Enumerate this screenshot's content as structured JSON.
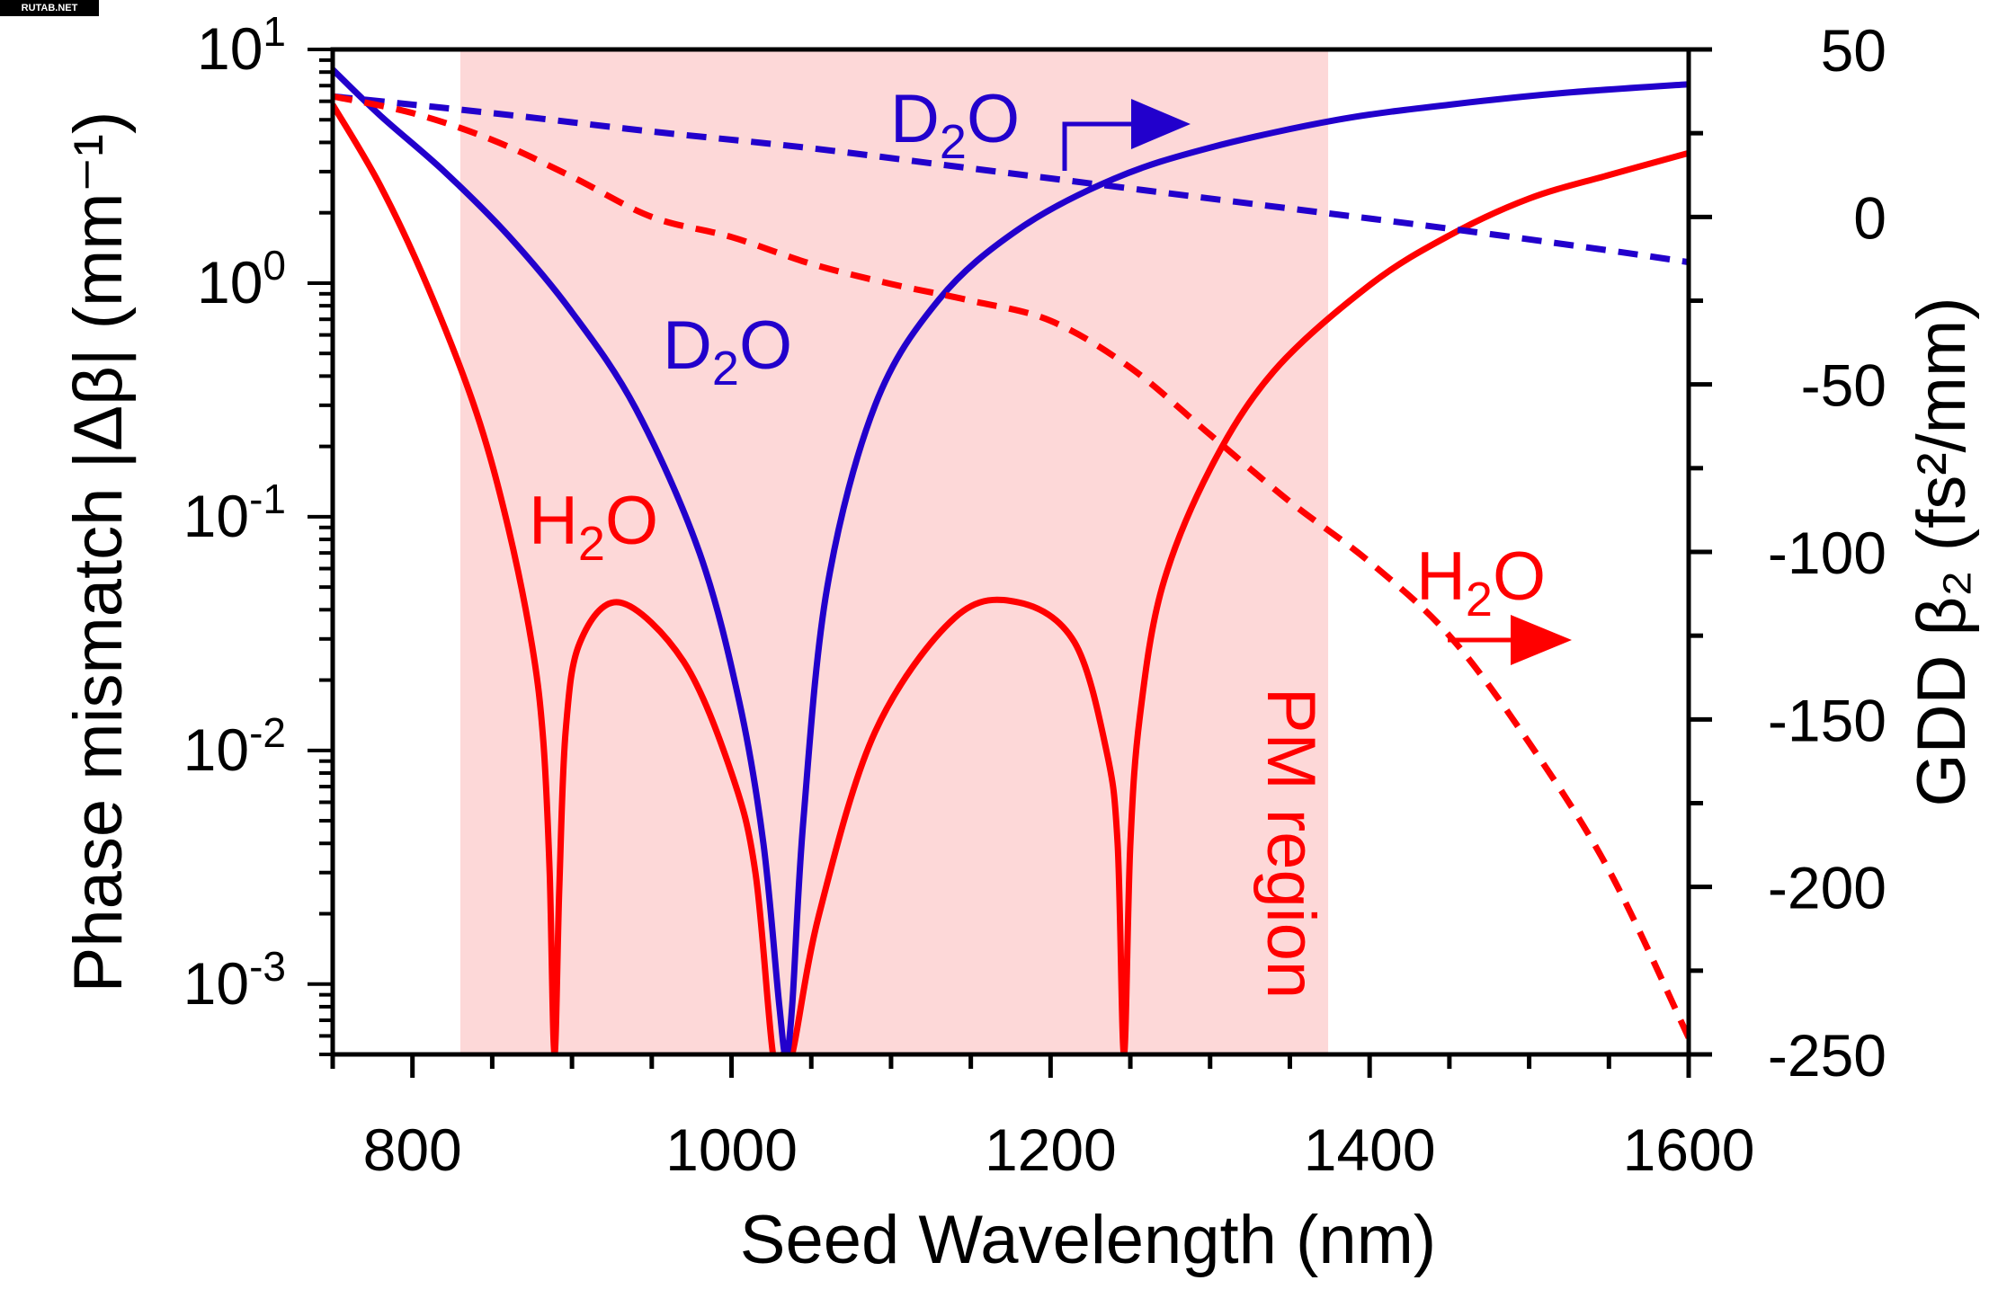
{
  "watermark": "RUTAB.NET",
  "chart_data": {
    "type": "line",
    "xlabel": "Seed Wavelength (nm)",
    "ylabel_left": "Phase mismatch |Δβ| (mm⁻¹)",
    "ylabel_right": "GDD β₂ (fs²/mm)",
    "xlim": [
      750,
      1600
    ],
    "ylim_left": [
      0.0005,
      10
    ],
    "ylim_left_scale": "log",
    "ylim_right": [
      -250,
      50
    ],
    "x_ticks": [
      800,
      1000,
      1200,
      1400,
      1600
    ],
    "y_left_ticks": [
      {
        "base": "10",
        "exp": "1",
        "value": 10
      },
      {
        "base": "10",
        "exp": "0",
        "value": 1
      },
      {
        "base": "10",
        "exp": "-1",
        "value": 0.1
      },
      {
        "base": "10",
        "exp": "-2",
        "value": 0.01
      },
      {
        "base": "10",
        "exp": "-3",
        "value": 0.001
      }
    ],
    "y_right_ticks": [
      "50",
      "0",
      "-50",
      "-100",
      "-150",
      "-200",
      "-250"
    ],
    "y_right_tick_values": [
      50,
      0,
      -50,
      -100,
      -150,
      -200,
      -250
    ],
    "shaded_region": {
      "label": "PM region",
      "x_range": [
        830,
        1374
      ],
      "color": "#fdd8d8"
    },
    "colors": {
      "h2o": "#ff0000",
      "d2o": "#2200cc",
      "shade": "#fdd8d8"
    },
    "series": [
      {
        "name": "H2O",
        "axis": "left",
        "style": "solid",
        "color": "#ff0000",
        "x": [
          750,
          780,
          810,
          840,
          860,
          875,
          882,
          886,
          889,
          892,
          896,
          905,
          930,
          970,
          1000,
          1015,
          1026,
          1032,
          1038,
          1055,
          1090,
          1140,
          1180,
          1215,
          1235,
          1242,
          1246,
          1250,
          1256,
          1270,
          1300,
          1340,
          1400,
          1450,
          1500,
          1550,
          1600
        ],
        "y": [
          5.8,
          2.6,
          0.95,
          0.28,
          0.09,
          0.028,
          0.011,
          0.003,
          0.0005,
          0.0025,
          0.012,
          0.029,
          0.043,
          0.024,
          0.008,
          0.003,
          0.0005,
          0.0005,
          0.0005,
          0.002,
          0.012,
          0.037,
          0.043,
          0.029,
          0.01,
          0.004,
          0.0005,
          0.004,
          0.014,
          0.05,
          0.16,
          0.42,
          0.98,
          1.6,
          2.3,
          2.9,
          3.6
        ]
      },
      {
        "name": "D2O",
        "axis": "left",
        "style": "solid",
        "color": "#2200cc",
        "x": [
          750,
          780,
          820,
          860,
          900,
          940,
          980,
          1005,
          1020,
          1030,
          1034,
          1038,
          1045,
          1060,
          1090,
          1130,
          1180,
          1240,
          1300,
          1380,
          1450,
          1520,
          1600
        ],
        "y": [
          8.2,
          5.2,
          3.0,
          1.6,
          0.75,
          0.29,
          0.07,
          0.016,
          0.004,
          0.0008,
          0.0005,
          0.0008,
          0.005,
          0.05,
          0.3,
          0.85,
          1.7,
          2.8,
          3.8,
          5.0,
          5.8,
          6.5,
          7.1
        ]
      },
      {
        "name": "D2O GDD",
        "axis": "right",
        "style": "dashed",
        "color": "#2200cc",
        "x": [
          750,
          850,
          950,
          1050,
          1150,
          1250,
          1350,
          1450,
          1550,
          1600
        ],
        "y": [
          36,
          31,
          25.5,
          20.5,
          14.5,
          8.5,
          2.5,
          -3.5,
          -10,
          -13.5
        ]
      },
      {
        "name": "H2O GDD",
        "axis": "right",
        "style": "dashed",
        "color": "#ff0000",
        "x": [
          750,
          800,
          850,
          900,
          950,
          1000,
          1050,
          1100,
          1150,
          1200,
          1250,
          1300,
          1350,
          1400,
          1450,
          1500,
          1550,
          1600
        ],
        "y": [
          36,
          31,
          23,
          12,
          0,
          -6,
          -14,
          -20,
          -25,
          -31,
          -45,
          -65,
          -85,
          -103,
          -125,
          -157,
          -195,
          -245
        ]
      }
    ],
    "annotations": [
      {
        "base": "D",
        "sub": "2",
        "rest": "O",
        "color": "#2200cc",
        "arrow": "right"
      },
      {
        "base": "D",
        "sub": "2",
        "rest": "O",
        "color": "#2200cc"
      },
      {
        "base": "H",
        "sub": "2",
        "rest": "O",
        "color": "#ff0000"
      },
      {
        "base": "H",
        "sub": "2",
        "rest": "O",
        "color": "#ff0000",
        "arrow": "right"
      }
    ]
  }
}
